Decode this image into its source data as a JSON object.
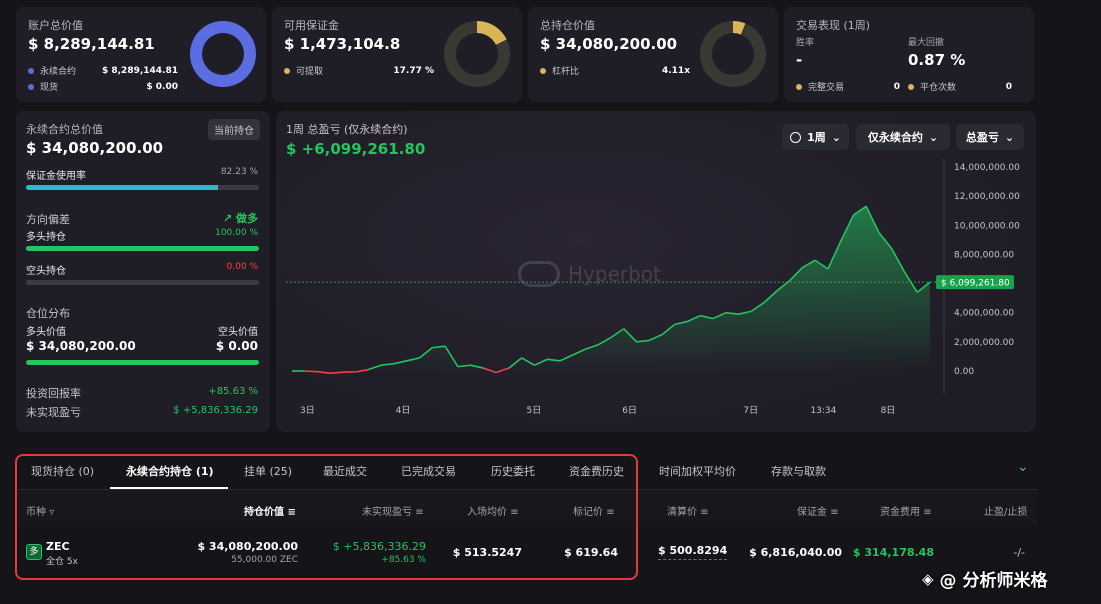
{
  "cards": {
    "account": {
      "title": "账户总价值",
      "value": "$ 8,289,144.81",
      "rows": [
        {
          "label": "永续合约",
          "value": "$ 8,289,144.81",
          "color": "#5b6ee1"
        },
        {
          "label": "现货",
          "value": "$ 0.00",
          "color": "#5b6ee1"
        }
      ]
    },
    "margin": {
      "title": "可用保证金",
      "value": "$ 1,473,104.8",
      "rows": [
        {
          "label": "可提取",
          "value": "17.77 %",
          "color": "#d9b55a"
        }
      ]
    },
    "position": {
      "title": "总持仓价值",
      "value": "$ 34,080,200.00",
      "rows": [
        {
          "label": "杠杆比",
          "value": "4.11x",
          "color": "#d9b55a"
        }
      ]
    },
    "perf": {
      "title": "交易表现 (1周)",
      "win_label": "胜率",
      "win_value": "-",
      "dd_label": "最大回撤",
      "dd_value": "0.87 %",
      "done_label": "完整交易",
      "done_value": "0",
      "close_label": "平仓次数",
      "close_value": "0"
    }
  },
  "left": {
    "perp_title": "永续合约总价值",
    "tag": "当前持仓",
    "perp_value": "$ 34,080,200.00",
    "usage_label": "保证金使用率",
    "usage_value": "82.23 %",
    "usage_frac": 0.8223,
    "bias_label": "方向偏差",
    "bias_value": "做多",
    "long_label": "多头持仓",
    "long_value": "100.00 %",
    "long_frac": 1.0,
    "short_label": "空头持仓",
    "short_value": "0.00 %",
    "short_frac": 0.0,
    "dist_label": "仓位分布",
    "long_val_label": "多头价值",
    "short_val_label": "空头价值",
    "long_val": "$ 34,080,200.00",
    "short_val": "$ 0.00",
    "roi_label": "投资回报率",
    "roi_value": "+85.63 %",
    "upnl_label": "未实现盈亏",
    "upnl_value": "$ +5,836,336.29"
  },
  "chart_panel": {
    "title": "1周 总盈亏 (仅永续合约)",
    "value": "$ +6,099,261.80",
    "sel_period": "1周",
    "sel_scope": "仅永续合约",
    "sel_metric": "总盈亏",
    "watermark": "Hyperbot"
  },
  "chart_data": {
    "type": "area",
    "y_ticks": [
      "14,000,000.00",
      "12,000,000.00",
      "10,000,000.00",
      "8,000,000.00",
      "6,000,000.00",
      "4,000,000.00",
      "2,000,000.00",
      "0.00"
    ],
    "ylim": [
      0,
      14000000
    ],
    "x_ticks": [
      "3日",
      "4日",
      "5日",
      "6日",
      "7日",
      "13:34",
      "8日"
    ],
    "current_label": "$ 6,099,261.80",
    "current_value": 6099261.8,
    "x": [
      0,
      2,
      4,
      6,
      8,
      10,
      12,
      14,
      16,
      18,
      20,
      22,
      24,
      26,
      28,
      30,
      32,
      34,
      36,
      38,
      40,
      42,
      44,
      46,
      48,
      50,
      52,
      54,
      56,
      58,
      60,
      62,
      64,
      66,
      68,
      70,
      72,
      74,
      76,
      78,
      80,
      82,
      84,
      86,
      88,
      90,
      92,
      94,
      96,
      98,
      100
    ],
    "values": [
      0,
      0,
      -50000,
      -150000,
      -80000,
      -60000,
      100000,
      400000,
      500000,
      700000,
      900000,
      1600000,
      1700000,
      300000,
      400000,
      200000,
      -100000,
      200000,
      900000,
      400000,
      800000,
      700000,
      1100000,
      1500000,
      1800000,
      2300000,
      2900000,
      2000000,
      2100000,
      2500000,
      3200000,
      3400000,
      3800000,
      3600000,
      4000000,
      3900000,
      4100000,
      4700000,
      5500000,
      6200000,
      7100000,
      7600000,
      7000000,
      8900000,
      10700000,
      11300000,
      9500000,
      8400000,
      6800000,
      5400000,
      6099261.8
    ]
  },
  "tabs": [
    "现货持仓 (0)",
    "永续合约持仓 (1)",
    "挂单 (25)",
    "最近成交",
    "已完成交易",
    "历史委托",
    "资金费历史",
    "时间加权平均价",
    "存款与取款"
  ],
  "table": {
    "headers": [
      "币种",
      "持仓价值",
      "未实现盈亏",
      "入场均价",
      "标记价",
      "清算价",
      "保证金",
      "资金费用",
      "止盈/止损"
    ],
    "row": {
      "coin": "ZEC",
      "mode": "全仓 5x",
      "badge": "多",
      "value": "$ 34,080,200.00",
      "size": "55,000.00 ZEC",
      "upnl": "$ +5,836,336.29",
      "upnl_pct": "+85.63 %",
      "entry": "$ 513.5247",
      "mark": "$ 619.64",
      "liq": "$ 500.8294",
      "margin": "$ 6,816,040.00",
      "funding": "$ 314,178.48",
      "tpsl": "-/-"
    }
  },
  "footer": {
    "watermark": "@ 分析师米格"
  },
  "colors": {
    "accent": "#22c55e",
    "blue": "#5b6ee1",
    "gold": "#d9b55a",
    "highlight": "#e03b3b"
  }
}
